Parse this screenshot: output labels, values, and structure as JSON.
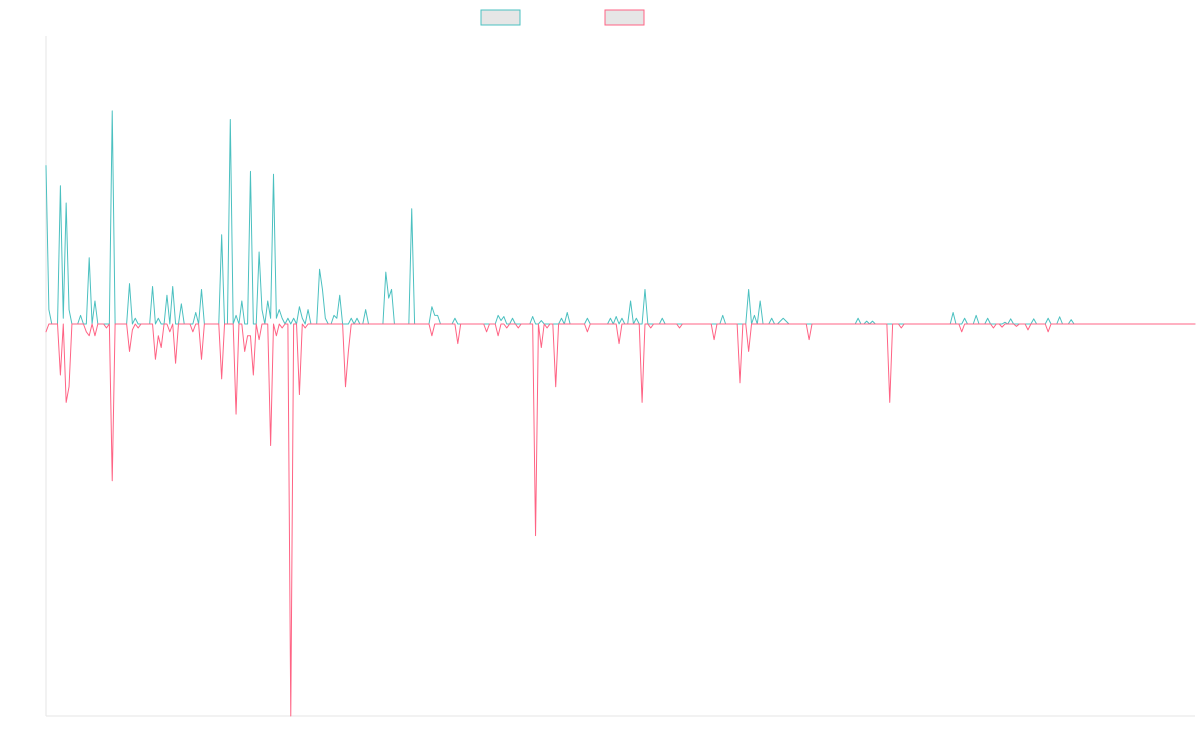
{
  "chart_data": {
    "type": "line",
    "title": "",
    "xlabel": "",
    "ylabel": "",
    "grid": false,
    "legend": "top-center",
    "ylim": [
      -1,
      1
    ],
    "x_count": 400,
    "series": [
      {
        "color": "#4bc0c0",
        "sparse_values": [
          [
            0,
            0.55
          ],
          [
            1,
            0.05
          ],
          [
            5,
            0.48
          ],
          [
            6,
            0.02
          ],
          [
            7,
            0.42
          ],
          [
            8,
            0.05
          ],
          [
            12,
            0.03
          ],
          [
            15,
            0.23
          ],
          [
            17,
            0.08
          ],
          [
            23,
            0.74
          ],
          [
            29,
            0.14
          ],
          [
            31,
            0.02
          ],
          [
            37,
            0.13
          ],
          [
            39,
            0.02
          ],
          [
            42,
            0.1
          ],
          [
            44,
            0.13
          ],
          [
            47,
            0.07
          ],
          [
            52,
            0.04
          ],
          [
            54,
            0.12
          ],
          [
            61,
            0.31
          ],
          [
            64,
            0.71
          ],
          [
            66,
            0.03
          ],
          [
            68,
            0.08
          ],
          [
            71,
            0.53
          ],
          [
            74,
            0.25
          ],
          [
            75,
            0.05
          ],
          [
            77,
            0.08
          ],
          [
            78,
            0.02
          ],
          [
            79,
            0.52
          ],
          [
            80,
            0.02
          ],
          [
            81,
            0.05
          ],
          [
            82,
            0.02
          ],
          [
            84,
            0.02
          ],
          [
            86,
            0.02
          ],
          [
            88,
            0.06
          ],
          [
            89,
            0.02
          ],
          [
            91,
            0.05
          ],
          [
            95,
            0.19
          ],
          [
            96,
            0.12
          ],
          [
            97,
            0.02
          ],
          [
            100,
            0.03
          ],
          [
            101,
            0.02
          ],
          [
            102,
            0.1
          ],
          [
            106,
            0.02
          ],
          [
            108,
            0.02
          ],
          [
            111,
            0.05
          ],
          [
            118,
            0.18
          ],
          [
            119,
            0.09
          ],
          [
            120,
            0.12
          ],
          [
            127,
            0.4
          ],
          [
            134,
            0.06
          ],
          [
            135,
            0.03
          ],
          [
            136,
            0.03
          ],
          [
            142,
            0.02
          ],
          [
            157,
            0.03
          ],
          [
            158,
            0.012
          ],
          [
            159,
            0.026
          ],
          [
            162,
            0.02
          ],
          [
            169,
            0.026
          ],
          [
            172,
            0.012
          ],
          [
            179,
            0.02
          ],
          [
            181,
            0.04
          ],
          [
            188,
            0.02
          ],
          [
            196,
            0.02
          ],
          [
            198,
            0.026
          ],
          [
            200,
            0.02
          ],
          [
            203,
            0.08
          ],
          [
            205,
            0.02
          ],
          [
            208,
            0.12
          ],
          [
            214,
            0.02
          ],
          [
            235,
            0.03
          ],
          [
            244,
            0.12
          ],
          [
            246,
            0.03
          ],
          [
            248,
            0.08
          ],
          [
            252,
            0.02
          ],
          [
            255,
            0.01
          ],
          [
            256,
            0.02
          ],
          [
            257,
            0.01
          ],
          [
            282,
            0.02
          ],
          [
            285,
            0.01
          ],
          [
            287,
            0.01
          ],
          [
            315,
            0.04
          ],
          [
            319,
            0.02
          ],
          [
            323,
            0.03
          ],
          [
            327,
            0.02
          ],
          [
            333,
            0.006
          ],
          [
            335,
            0.018
          ],
          [
            343,
            0.018
          ],
          [
            348,
            0.02
          ],
          [
            352,
            0.025
          ],
          [
            356,
            0.015
          ]
        ]
      },
      {
        "color": "#ff6384",
        "sparse_values": [
          [
            0,
            -0.02
          ],
          [
            5,
            -0.13
          ],
          [
            7,
            -0.2
          ],
          [
            8,
            -0.16
          ],
          [
            14,
            -0.02
          ],
          [
            15,
            -0.03
          ],
          [
            17,
            -0.03
          ],
          [
            21,
            -0.01
          ],
          [
            23,
            -0.4
          ],
          [
            29,
            -0.07
          ],
          [
            30,
            -0.015
          ],
          [
            32,
            -0.01
          ],
          [
            38,
            -0.09
          ],
          [
            39,
            -0.03
          ],
          [
            40,
            -0.06
          ],
          [
            43,
            -0.02
          ],
          [
            45,
            -0.1
          ],
          [
            51,
            -0.02
          ],
          [
            54,
            -0.09
          ],
          [
            61,
            -0.14
          ],
          [
            66,
            -0.23
          ],
          [
            69,
            -0.07
          ],
          [
            70,
            -0.03
          ],
          [
            71,
            -0.03
          ],
          [
            72,
            -0.13
          ],
          [
            74,
            -0.04
          ],
          [
            78,
            -0.31
          ],
          [
            80,
            -0.03
          ],
          [
            82,
            -0.01
          ],
          [
            85,
            -1.0
          ],
          [
            88,
            -0.18
          ],
          [
            90,
            -0.01
          ],
          [
            104,
            -0.16
          ],
          [
            105,
            -0.07
          ],
          [
            134,
            -0.03
          ],
          [
            143,
            -0.05
          ],
          [
            153,
            -0.02
          ],
          [
            157,
            -0.03
          ],
          [
            160,
            -0.01
          ],
          [
            164,
            -0.01
          ],
          [
            170,
            -0.54
          ],
          [
            172,
            -0.06
          ],
          [
            174,
            -0.01
          ],
          [
            177,
            -0.16
          ],
          [
            188,
            -0.02
          ],
          [
            199,
            -0.05
          ],
          [
            207,
            -0.2
          ],
          [
            210,
            -0.01
          ],
          [
            220,
            -0.01
          ],
          [
            232,
            -0.04
          ],
          [
            241,
            -0.15
          ],
          [
            244,
            -0.07
          ],
          [
            265,
            -0.04
          ],
          [
            293,
            -0.2
          ],
          [
            297,
            -0.01
          ],
          [
            318,
            -0.02
          ],
          [
            329,
            -0.01
          ],
          [
            332,
            -0.008
          ],
          [
            337,
            -0.006
          ],
          [
            341,
            -0.015
          ],
          [
            348,
            -0.02
          ]
        ]
      }
    ]
  }
}
